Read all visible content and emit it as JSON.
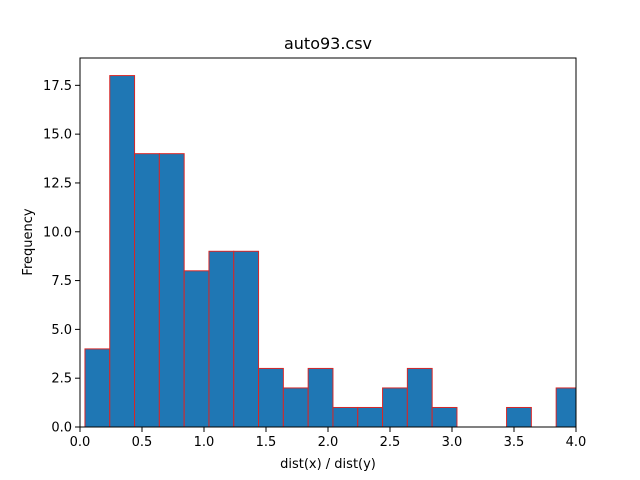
{
  "chart_data": {
    "type": "bar",
    "title": "auto93.csv",
    "xlabel": "dist(x) / dist(y)",
    "ylabel": "Frequency",
    "xlim": [
      0.0,
      4.0
    ],
    "ylim": [
      0.0,
      18.9
    ],
    "xticks": [
      "0.0",
      "0.5",
      "1.0",
      "1.5",
      "2.0",
      "2.5",
      "3.0",
      "3.5",
      "4.0"
    ],
    "yticks": [
      "0.0",
      "2.5",
      "5.0",
      "7.5",
      "10.0",
      "12.5",
      "15.0",
      "17.5"
    ],
    "bin_edges": [
      0.04,
      0.24,
      0.44,
      0.64,
      0.84,
      1.04,
      1.24,
      1.44,
      1.64,
      1.84,
      2.04,
      2.24,
      2.44,
      2.64,
      2.84,
      3.04,
      3.24,
      3.44,
      3.64,
      3.84,
      4.04
    ],
    "values": [
      4,
      18,
      14,
      14,
      8,
      9,
      9,
      3,
      2,
      3,
      1,
      1,
      2,
      3,
      1,
      0,
      0,
      1,
      0,
      2
    ],
    "grid": false,
    "bar_color": "#1f77b4",
    "edge_color": "#d62728"
  }
}
